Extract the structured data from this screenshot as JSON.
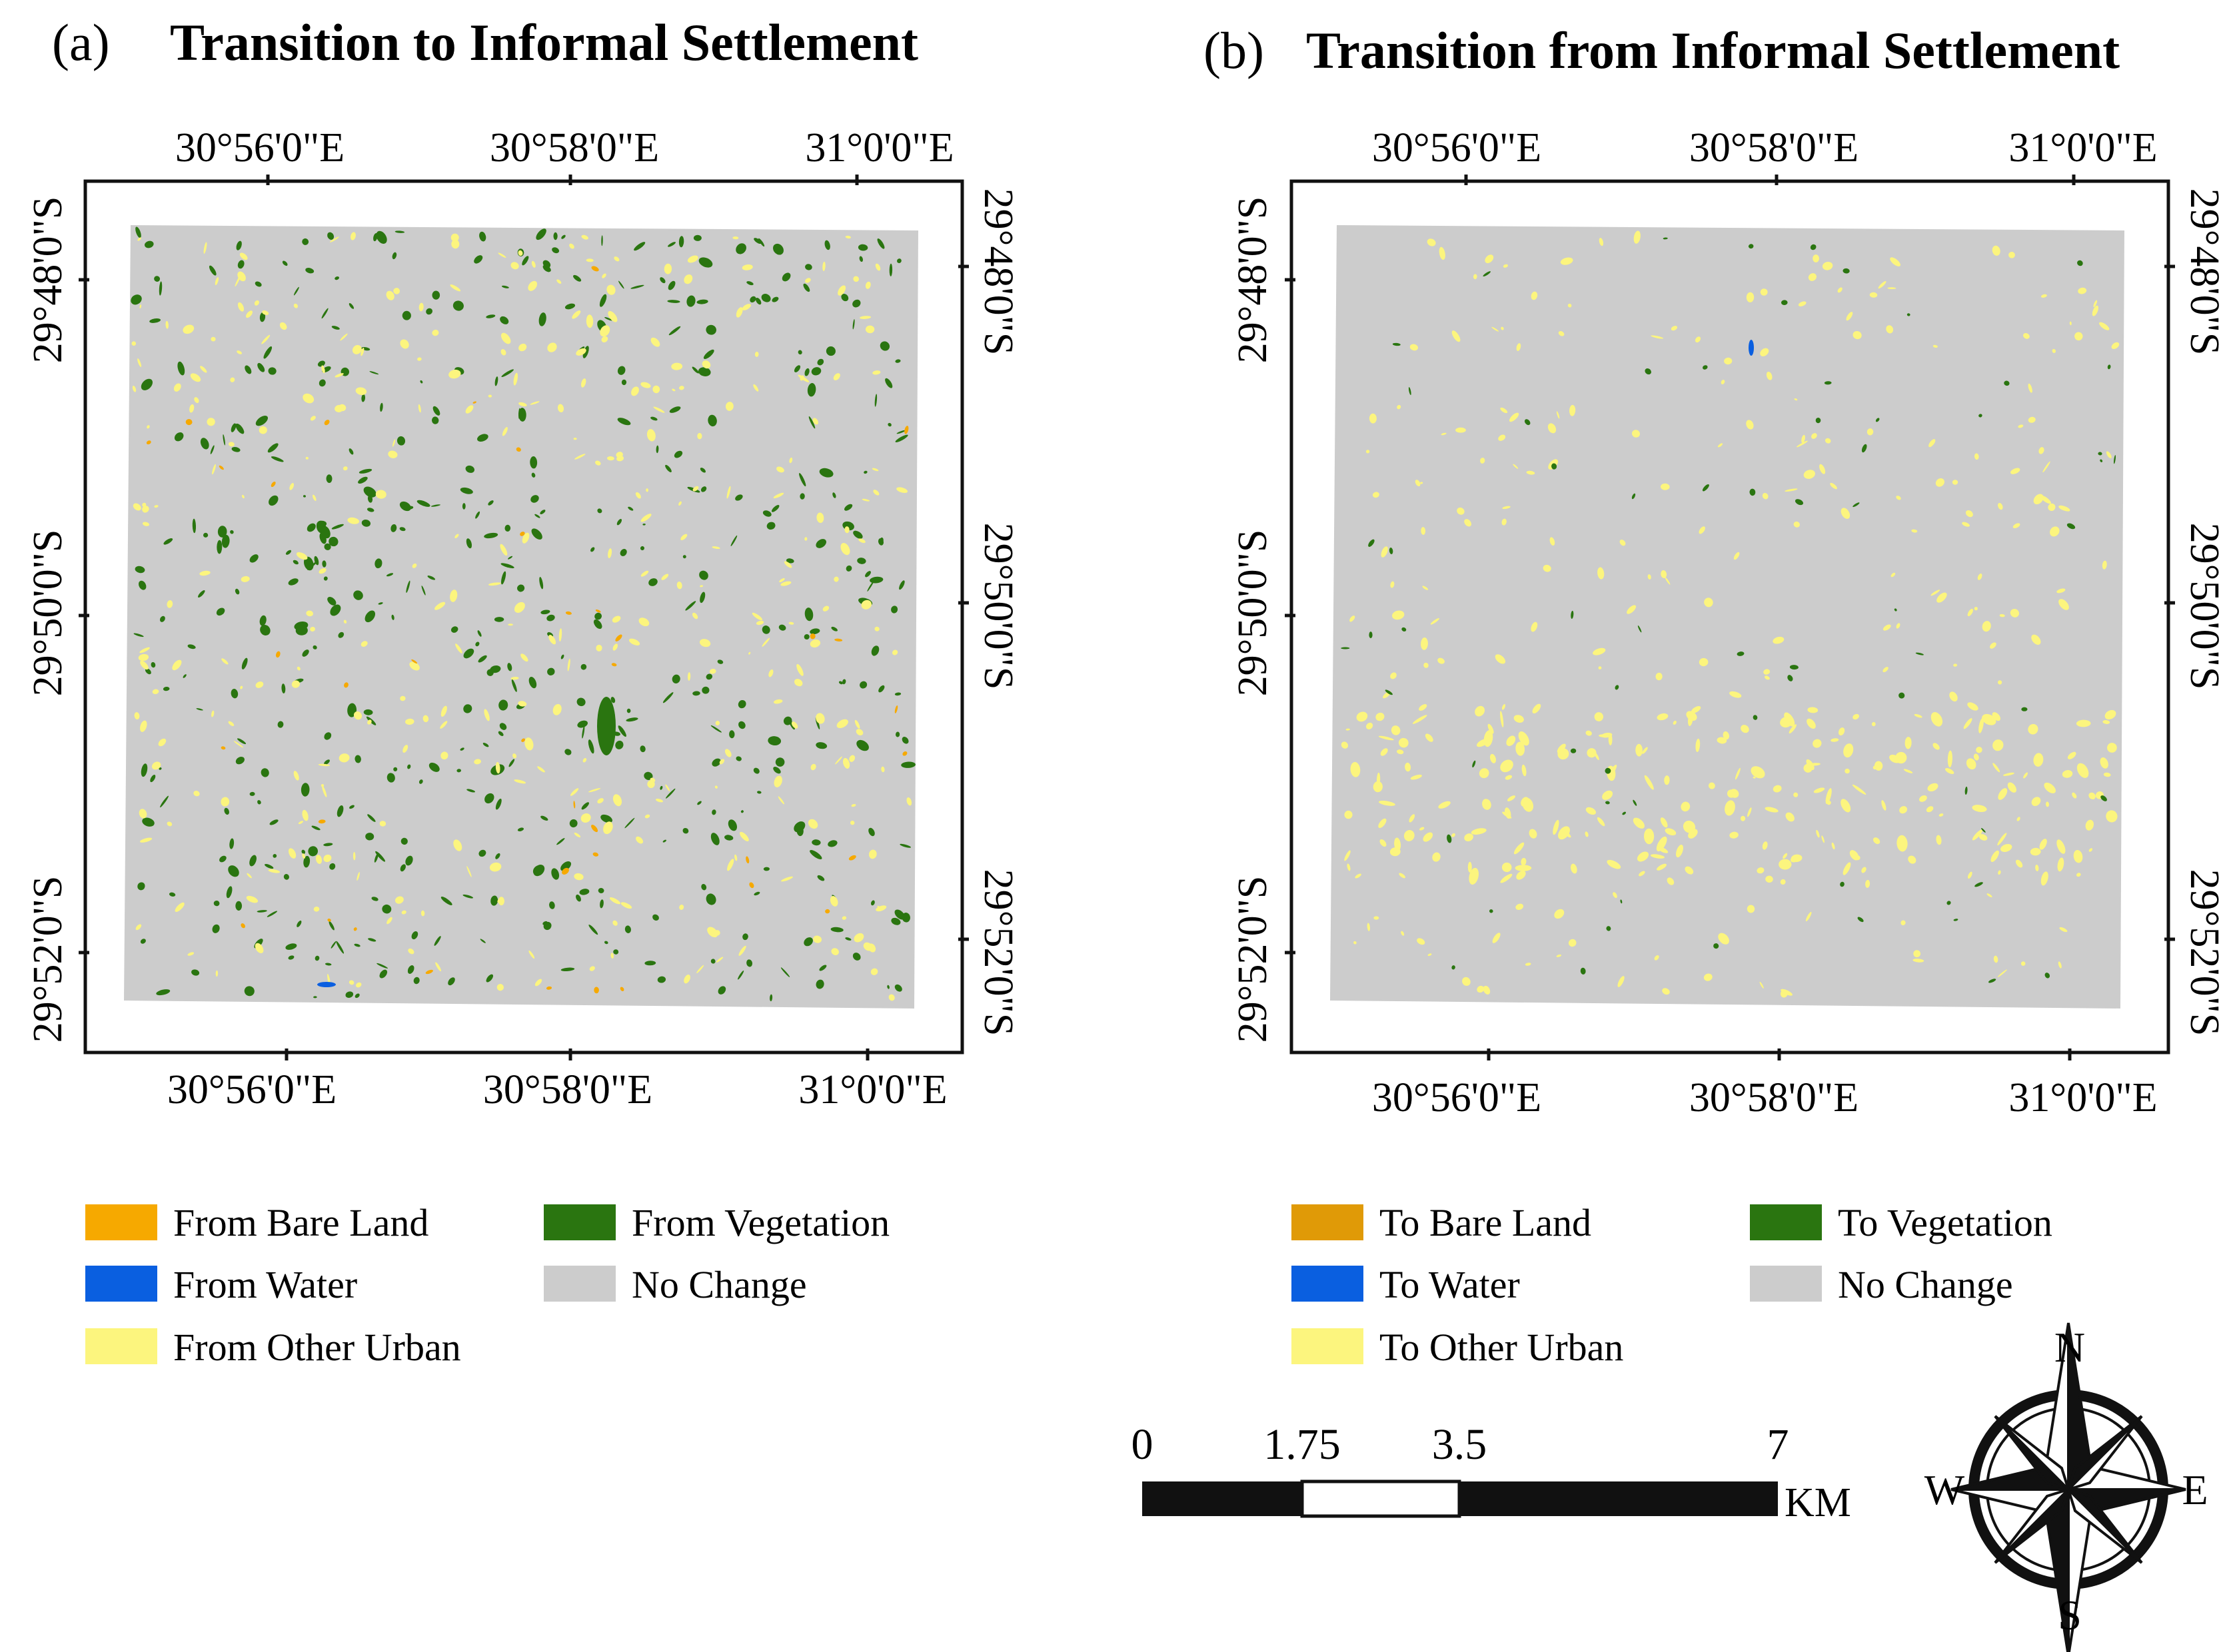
{
  "colors": {
    "bare_a": "#f6a900",
    "bare_b": "#e09a07",
    "water": "#0a5fe0",
    "vegetation": "#2a7510",
    "no_change": "#cccccc",
    "other_urban": "#fcf57e",
    "ink": "#111111"
  },
  "panels": [
    {
      "letter": "(a)",
      "title": "Transition to Informal Settlement",
      "lon_labels": [
        "30°56'0\"E",
        "30°58'0\"E",
        "31°0'0\"E"
      ],
      "lat_labels": [
        "29°48'0\"S",
        "29°50'0\"S",
        "29°52'0\"S"
      ],
      "legend": [
        {
          "label": "From Bare Land",
          "color": "#f6a900"
        },
        {
          "label": "From Vegetation",
          "color": "#2a7510"
        },
        {
          "label": "From Water",
          "color": "#0a5fe0"
        },
        {
          "label": "No Change",
          "color": "#cccccc"
        },
        {
          "label": "From Other Urban",
          "color": "#fcf57e"
        }
      ]
    },
    {
      "letter": "(b)",
      "title": "Transition from Informal Settlement",
      "lon_labels": [
        "30°56'0\"E",
        "30°58'0\"E",
        "31°0'0\"E"
      ],
      "lat_labels": [
        "29°48'0\"S",
        "29°50'0\"S",
        "29°52'0\"S"
      ],
      "legend": [
        {
          "label": "To Bare Land",
          "color": "#e09a07"
        },
        {
          "label": "To Vegetation",
          "color": "#2a7510"
        },
        {
          "label": "To Water",
          "color": "#0a5fe0"
        },
        {
          "label": "No Change",
          "color": "#cccccc"
        },
        {
          "label": "To Other Urban",
          "color": "#fcf57e"
        }
      ]
    }
  ],
  "scale_bar": {
    "ticks": [
      "0",
      "1.75",
      "3.5",
      "7"
    ],
    "unit": "KM"
  },
  "compass": {
    "n": "N",
    "s": "S",
    "e": "E",
    "w": "W"
  }
}
